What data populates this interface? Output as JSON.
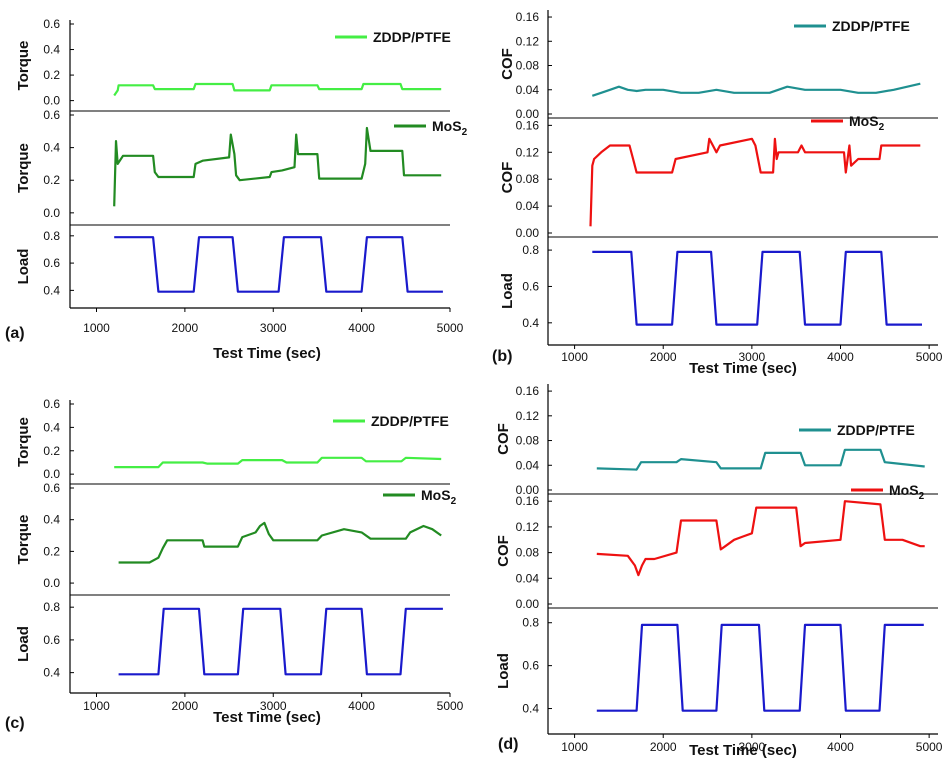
{
  "chart_data": [
    {
      "id": "a",
      "panel_label": "(a)",
      "type": "line",
      "xlabel": "Test Time (sec)",
      "xlim": [
        700,
        5000
      ],
      "xticks": [
        "1000",
        "2000",
        "3000",
        "4000",
        "5000"
      ],
      "xtick_values": [
        1000,
        2000,
        3000,
        4000,
        5000
      ],
      "subplots": [
        {
          "key": "top",
          "ylabel": "Torque",
          "ylim": [
            -0.05,
            0.6
          ],
          "yticks": [
            "0.0",
            "0.2",
            "0.4",
            "0.6"
          ],
          "ytick_values": [
            0.0,
            0.2,
            0.4,
            0.6
          ],
          "series": {
            "name": "ZDDP/PTFE",
            "color": "#44ee44",
            "x": [
              1200,
              1240,
              1250,
              1640,
              1660,
              2100,
              2120,
              2540,
              2560,
              2960,
              2980,
              3500,
              3520,
              4000,
              4020,
              4440,
              4460,
              4900
            ],
            "y": [
              0.04,
              0.08,
              0.12,
              0.12,
              0.09,
              0.09,
              0.13,
              0.13,
              0.08,
              0.08,
              0.12,
              0.12,
              0.09,
              0.09,
              0.13,
              0.13,
              0.09,
              0.09
            ]
          }
        },
        {
          "key": "mid",
          "ylabel": "Torque",
          "ylim": [
            -0.05,
            0.6
          ],
          "yticks": [
            "0.0",
            "0.2",
            "0.4",
            "0.6"
          ],
          "ytick_values": [
            0.0,
            0.2,
            0.4,
            0.6
          ],
          "series": {
            "name": "MoS",
            "name_sub": "2",
            "color": "#228B22",
            "x": [
              1200,
              1220,
              1240,
              1300,
              1640,
              1660,
              1700,
              2100,
              2120,
              2200,
              2500,
              2520,
              2560,
              2580,
              2620,
              2960,
              2980,
              3100,
              3240,
              3260,
              3280,
              3300,
              3500,
              3520,
              3600,
              4000,
              4040,
              4060,
              4100,
              4460,
              4480,
              4900
            ],
            "y": [
              0.04,
              0.44,
              0.3,
              0.35,
              0.35,
              0.25,
              0.22,
              0.22,
              0.3,
              0.32,
              0.34,
              0.48,
              0.36,
              0.23,
              0.2,
              0.22,
              0.25,
              0.26,
              0.28,
              0.48,
              0.36,
              0.36,
              0.36,
              0.21,
              0.21,
              0.21,
              0.3,
              0.52,
              0.38,
              0.38,
              0.23,
              0.23
            ]
          }
        },
        {
          "key": "bot",
          "ylabel": "Load",
          "ylim": [
            0.3,
            0.85
          ],
          "yticks": [
            "0.4",
            "0.6",
            "0.8"
          ],
          "ytick_values": [
            0.4,
            0.6,
            0.8
          ],
          "series": {
            "name": "Load",
            "color": "#1a1acc",
            "x": [
              1200,
              1640,
              1700,
              2100,
              2160,
              2540,
              2600,
              3060,
              3120,
              3540,
              3600,
              4000,
              4060,
              4460,
              4520,
              4920
            ],
            "y": [
              0.79,
              0.79,
              0.39,
              0.39,
              0.79,
              0.79,
              0.39,
              0.39,
              0.79,
              0.79,
              0.39,
              0.39,
              0.79,
              0.79,
              0.39,
              0.39
            ]
          }
        }
      ]
    },
    {
      "id": "b",
      "panel_label": "(b)",
      "type": "line",
      "xlabel": "Test Time (sec)",
      "xlim": [
        700,
        5100
      ],
      "xticks": [
        "1000",
        "2000",
        "3000",
        "4000",
        "5000"
      ],
      "xtick_values": [
        1000,
        2000,
        3000,
        4000,
        5000
      ],
      "subplots": [
        {
          "key": "top",
          "ylabel": "COF",
          "ylim": [
            0.0,
            0.165
          ],
          "yticks": [
            "0.00",
            "0.04",
            "0.08",
            "0.12",
            "0.16"
          ],
          "ytick_values": [
            0,
            0.04,
            0.08,
            0.12,
            0.16
          ],
          "series": {
            "name": "ZDDP/PTFE",
            "color": "#1f9090",
            "x": [
              1200,
              1300,
              1400,
              1500,
              1600,
              1700,
              1800,
              2000,
              2200,
              2400,
              2600,
              2800,
              3000,
              3200,
              3400,
              3600,
              3800,
              4000,
              4200,
              4400,
              4600,
              4900
            ],
            "y": [
              0.03,
              0.035,
              0.04,
              0.045,
              0.04,
              0.038,
              0.04,
              0.04,
              0.035,
              0.035,
              0.04,
              0.035,
              0.035,
              0.035,
              0.045,
              0.04,
              0.04,
              0.04,
              0.035,
              0.035,
              0.04,
              0.05
            ]
          }
        },
        {
          "key": "mid",
          "ylabel": "COF",
          "ylim": [
            0.0,
            0.165
          ],
          "yticks": [
            "0.00",
            "0.04",
            "0.08",
            "0.12",
            "0.16"
          ],
          "ytick_values": [
            0,
            0.04,
            0.08,
            0.12,
            0.16
          ],
          "series": {
            "name": "MoS",
            "name_sub": "2",
            "color": "#ee1111",
            "x": [
              1180,
              1200,
              1220,
              1300,
              1400,
              1620,
              1660,
              1700,
              2100,
              2140,
              2500,
              2520,
              2560,
              2600,
              2640,
              3000,
              3040,
              3100,
              3240,
              3260,
              3280,
              3300,
              3520,
              3560,
              3600,
              4040,
              4060,
              4100,
              4120,
              4200,
              4440,
              4460,
              4900
            ],
            "y": [
              0.01,
              0.1,
              0.11,
              0.12,
              0.13,
              0.13,
              0.11,
              0.09,
              0.09,
              0.11,
              0.12,
              0.14,
              0.13,
              0.12,
              0.13,
              0.14,
              0.13,
              0.09,
              0.09,
              0.14,
              0.11,
              0.12,
              0.12,
              0.13,
              0.12,
              0.12,
              0.09,
              0.13,
              0.1,
              0.11,
              0.11,
              0.13,
              0.13
            ]
          }
        },
        {
          "key": "bot",
          "ylabel": "Load",
          "ylim": [
            0.3,
            0.85
          ],
          "yticks": [
            "0.4",
            "0.6",
            "0.8"
          ],
          "ytick_values": [
            0.4,
            0.6,
            0.8
          ],
          "series": {
            "name": "Load",
            "color": "#1a1acc",
            "x": [
              1200,
              1640,
              1700,
              2100,
              2160,
              2540,
              2600,
              3060,
              3120,
              3540,
              3600,
              4000,
              4060,
              4460,
              4520,
              4920
            ],
            "y": [
              0.79,
              0.79,
              0.39,
              0.39,
              0.79,
              0.79,
              0.39,
              0.39,
              0.79,
              0.79,
              0.39,
              0.39,
              0.79,
              0.79,
              0.39,
              0.39
            ]
          }
        }
      ]
    },
    {
      "id": "c",
      "panel_label": "(c)",
      "type": "line",
      "xlabel": "Test Time (sec)",
      "xlim": [
        700,
        5000
      ],
      "xticks": [
        "1000",
        "2000",
        "3000",
        "4000",
        "5000"
      ],
      "xtick_values": [
        1000,
        2000,
        3000,
        4000,
        5000
      ],
      "subplots": [
        {
          "key": "top",
          "ylabel": "Torque",
          "ylim": [
            -0.05,
            0.6
          ],
          "yticks": [
            "0.0",
            "0.2",
            "0.4",
            "0.6"
          ],
          "ytick_values": [
            0.0,
            0.2,
            0.4,
            0.6
          ],
          "series": {
            "name": "ZDDP/PTFE",
            "color": "#44ee44",
            "x": [
              1200,
              1700,
              1750,
              2200,
              2250,
              2600,
              2650,
              3100,
              3150,
              3500,
              3550,
              4000,
              4050,
              4450,
              4500,
              4900
            ],
            "y": [
              0.06,
              0.06,
              0.1,
              0.1,
              0.09,
              0.09,
              0.12,
              0.12,
              0.1,
              0.1,
              0.14,
              0.14,
              0.11,
              0.11,
              0.14,
              0.13
            ]
          }
        },
        {
          "key": "mid",
          "ylabel": "Torque",
          "ylim": [
            -0.05,
            0.6
          ],
          "yticks": [
            "0.0",
            "0.2",
            "0.4",
            "0.6"
          ],
          "ytick_values": [
            0.0,
            0.2,
            0.4,
            0.6
          ],
          "series": {
            "name": "MoS",
            "name_sub": "2",
            "color": "#228B22",
            "x": [
              1250,
              1600,
              1700,
              1750,
              1800,
              2200,
              2220,
              2600,
              2650,
              2800,
              2850,
              2900,
              2950,
              3000,
              3500,
              3550,
              3800,
              4000,
              4100,
              4500,
              4550,
              4700,
              4800,
              4900
            ],
            "y": [
              0.13,
              0.13,
              0.16,
              0.22,
              0.27,
              0.27,
              0.23,
              0.23,
              0.29,
              0.32,
              0.36,
              0.38,
              0.31,
              0.27,
              0.27,
              0.3,
              0.34,
              0.32,
              0.28,
              0.28,
              0.32,
              0.36,
              0.34,
              0.3
            ]
          }
        },
        {
          "key": "bot",
          "ylabel": "Load",
          "ylim": [
            0.3,
            0.85
          ],
          "yticks": [
            "0.4",
            "0.6",
            "0.8"
          ],
          "ytick_values": [
            0.4,
            0.6,
            0.8
          ],
          "series": {
            "name": "Load",
            "color": "#1a1acc",
            "x": [
              1250,
              1700,
              1760,
              2160,
              2220,
              2600,
              2660,
              3080,
              3140,
              3540,
              3600,
              4000,
              4060,
              4440,
              4500,
              4920
            ],
            "y": [
              0.39,
              0.39,
              0.79,
              0.79,
              0.39,
              0.39,
              0.79,
              0.79,
              0.39,
              0.39,
              0.79,
              0.79,
              0.39,
              0.39,
              0.79,
              0.79
            ]
          }
        }
      ]
    },
    {
      "id": "d",
      "panel_label": "(d)",
      "type": "line",
      "xlabel": "Test Time (sec)",
      "xlim": [
        700,
        5100
      ],
      "xticks": [
        "1000",
        "2000",
        "3000",
        "4000",
        "5000"
      ],
      "xtick_values": [
        1000,
        2000,
        3000,
        4000,
        5000
      ],
      "subplots": [
        {
          "key": "top",
          "ylabel": "COF",
          "ylim": [
            0.0,
            0.165
          ],
          "yticks": [
            "0.00",
            "0.04",
            "0.08",
            "0.12",
            "0.16"
          ],
          "ytick_values": [
            0,
            0.04,
            0.08,
            0.12,
            0.16
          ],
          "series": {
            "name": "ZDDP/PTFE",
            "color": "#1f9090",
            "x": [
              1250,
              1700,
              1750,
              2150,
              2200,
              2600,
              2650,
              3100,
              3150,
              3550,
              3600,
              4000,
              4050,
              4450,
              4500,
              4950
            ],
            "y": [
              0.035,
              0.033,
              0.045,
              0.045,
              0.05,
              0.045,
              0.035,
              0.035,
              0.06,
              0.06,
              0.04,
              0.04,
              0.065,
              0.065,
              0.045,
              0.038
            ]
          }
        },
        {
          "key": "mid",
          "ylabel": "COF",
          "ylim": [
            0.0,
            0.165
          ],
          "yticks": [
            "0.00",
            "0.04",
            "0.08",
            "0.12",
            "0.16"
          ],
          "ytick_values": [
            0,
            0.04,
            0.08,
            0.12,
            0.16
          ],
          "series": {
            "name": "MoS",
            "name_sub": "2",
            "color": "#ee1111",
            "x": [
              1250,
              1600,
              1680,
              1720,
              1760,
              1800,
              1900,
              2150,
              2200,
              2600,
              2650,
              2700,
              2800,
              2900,
              3000,
              3050,
              3100,
              3500,
              3550,
              3600,
              4000,
              4050,
              4450,
              4500,
              4700,
              4900,
              4950
            ],
            "y": [
              0.078,
              0.075,
              0.06,
              0.045,
              0.06,
              0.07,
              0.07,
              0.08,
              0.13,
              0.13,
              0.085,
              0.09,
              0.1,
              0.105,
              0.11,
              0.15,
              0.15,
              0.15,
              0.09,
              0.095,
              0.1,
              0.16,
              0.155,
              0.1,
              0.1,
              0.09,
              0.09
            ]
          }
        },
        {
          "key": "bot",
          "ylabel": "Load",
          "ylim": [
            0.3,
            0.85
          ],
          "yticks": [
            "0.4",
            "0.6",
            "0.8"
          ],
          "ytick_values": [
            0.4,
            0.6,
            0.8
          ],
          "series": {
            "name": "Load",
            "color": "#1a1acc",
            "x": [
              1250,
              1700,
              1760,
              2160,
              2220,
              2600,
              2660,
              3080,
              3140,
              3540,
              3600,
              4000,
              4060,
              4440,
              4500,
              4940
            ],
            "y": [
              0.39,
              0.39,
              0.79,
              0.79,
              0.39,
              0.39,
              0.79,
              0.79,
              0.39,
              0.39,
              0.79,
              0.79,
              0.39,
              0.39,
              0.79,
              0.79
            ]
          }
        }
      ]
    }
  ]
}
